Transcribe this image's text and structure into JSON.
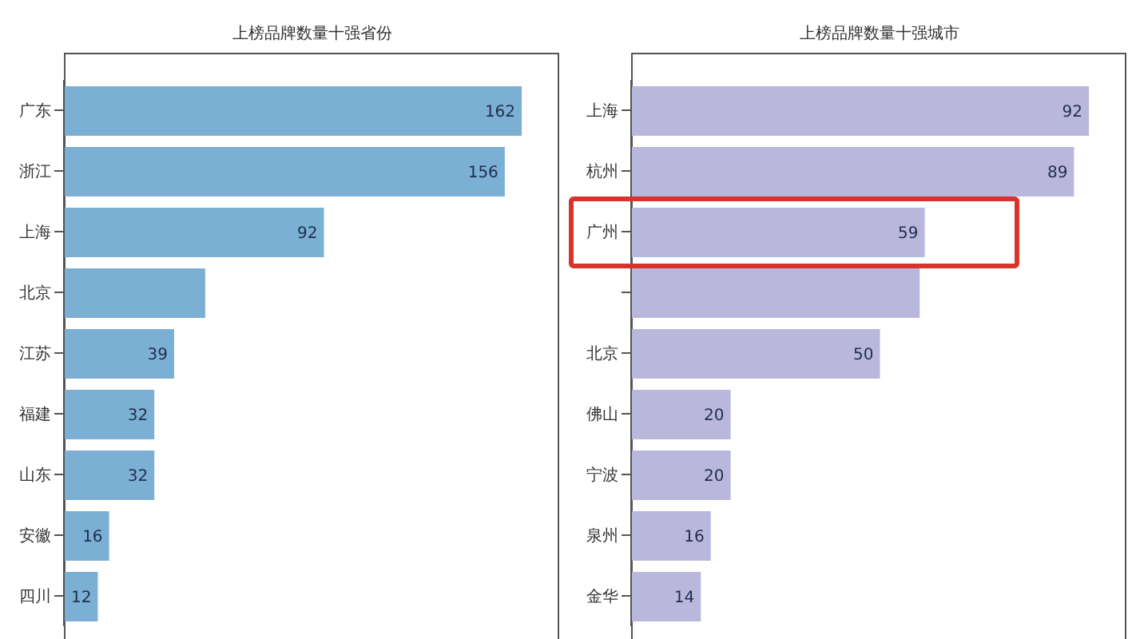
{
  "chart_data": [
    {
      "type": "bar",
      "orientation": "horizontal",
      "title": "上榜品牌数量十强省份",
      "categories": [
        "广东",
        "浙江",
        "上海",
        "北京",
        "江苏",
        "福建",
        "山东",
        "安徽",
        "四川"
      ],
      "values": [
        162,
        156,
        92,
        50,
        39,
        32,
        32,
        16,
        12
      ],
      "value_labels": [
        "162",
        "156",
        "92",
        null,
        "39",
        "32",
        "32",
        "16",
        "12"
      ],
      "color": "#7bafd4",
      "grid": false,
      "legend": false
    },
    {
      "type": "bar",
      "orientation": "horizontal",
      "title": "上榜品牌数量十强城市",
      "categories": [
        "上海",
        "杭州",
        "广州",
        null,
        "北京",
        "佛山",
        "宁波",
        "泉州",
        "金华"
      ],
      "values": [
        92,
        89,
        59,
        58,
        50,
        20,
        20,
        16,
        14
      ],
      "value_labels": [
        "92",
        "89",
        "59",
        null,
        "50",
        "20",
        "20",
        "16",
        "14"
      ],
      "color": "#b9b7dc",
      "grid": false,
      "legend": false
    }
  ]
}
